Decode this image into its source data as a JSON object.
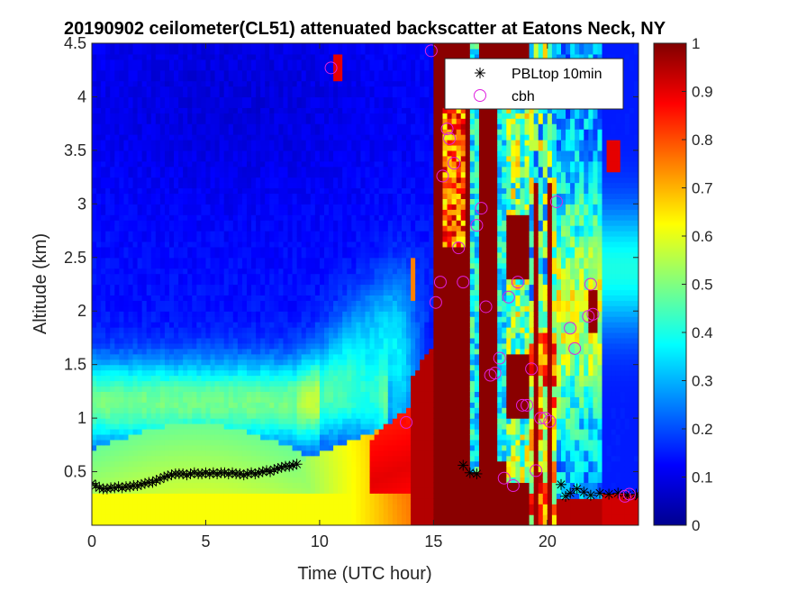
{
  "chart_data": {
    "type": "heatmap",
    "title": "20190902 ceilometer(CL51) attenuated backscatter at Eatons Neck, NY",
    "xlabel": "Time (UTC hour)",
    "ylabel": "Altitude (km)",
    "xlim": [
      0,
      24
    ],
    "ylim": [
      0,
      4.5
    ],
    "x_ticks": [
      0,
      5,
      10,
      15,
      20
    ],
    "x_tick_labels": [
      "0",
      "5",
      "10",
      "15",
      "20"
    ],
    "y_ticks": [
      0.5,
      1,
      1.5,
      2,
      2.5,
      3,
      3.5,
      4,
      4.5
    ],
    "y_tick_labels": [
      "0.5",
      "1",
      "1.5",
      "2",
      "2.5",
      "3",
      "3.5",
      "4",
      "4.5"
    ],
    "colorbar": {
      "colormap": "jet",
      "range": [
        0,
        1
      ],
      "ticks": [
        0,
        0.1,
        0.2,
        0.3,
        0.4,
        0.5,
        0.6,
        0.7,
        0.8,
        0.9,
        1
      ],
      "tick_labels": [
        "0",
        "0.1",
        "0.2",
        "0.3",
        "0.4",
        "0.5",
        "0.6",
        "0.7",
        "0.8",
        "0.9",
        "1"
      ]
    },
    "legend": {
      "placement": "top-right",
      "entries": [
        {
          "label": "PBLtop 10min",
          "marker": "asterisk",
          "color": "#000000"
        },
        {
          "label": "cbh",
          "marker": "circle",
          "color": "#e020e0"
        }
      ]
    },
    "series": [
      {
        "name": "PBLtop 10min",
        "marker": "asterisk",
        "color": "#000000",
        "x": [
          0.0,
          0.17,
          0.33,
          0.5,
          0.67,
          0.83,
          1.0,
          1.17,
          1.33,
          1.5,
          1.67,
          1.83,
          2.0,
          2.17,
          2.33,
          2.5,
          2.67,
          2.83,
          3.0,
          3.17,
          3.33,
          3.5,
          3.67,
          3.83,
          4.0,
          4.17,
          4.33,
          4.5,
          4.67,
          4.83,
          5.0,
          5.17,
          5.33,
          5.5,
          5.67,
          5.83,
          6.0,
          6.17,
          6.33,
          6.5,
          6.67,
          6.83,
          7.0,
          7.17,
          7.33,
          7.5,
          7.67,
          7.83,
          8.0,
          8.17,
          8.33,
          8.5,
          8.67,
          8.83,
          9.0,
          16.3,
          16.6,
          16.9,
          20.6,
          20.8,
          21.0,
          21.3,
          21.6,
          21.9,
          22.3,
          22.7,
          23.1,
          23.5,
          23.9,
          24.0
        ],
        "y": [
          0.39,
          0.37,
          0.35,
          0.34,
          0.34,
          0.35,
          0.35,
          0.36,
          0.35,
          0.36,
          0.36,
          0.37,
          0.37,
          0.38,
          0.39,
          0.4,
          0.4,
          0.42,
          0.43,
          0.45,
          0.46,
          0.47,
          0.48,
          0.48,
          0.48,
          0.47,
          0.48,
          0.49,
          0.48,
          0.48,
          0.49,
          0.48,
          0.49,
          0.48,
          0.49,
          0.49,
          0.48,
          0.49,
          0.48,
          0.48,
          0.47,
          0.48,
          0.49,
          0.48,
          0.49,
          0.5,
          0.51,
          0.5,
          0.52,
          0.53,
          0.54,
          0.55,
          0.55,
          0.56,
          0.57,
          0.56,
          0.49,
          0.48,
          0.38,
          0.27,
          0.3,
          0.34,
          0.31,
          0.28,
          0.3,
          0.29,
          0.3,
          0.28,
          0.29,
          0.27
        ]
      },
      {
        "name": "cbh",
        "marker": "circle",
        "color": "#e020e0",
        "x": [
          10.5,
          13.8,
          14.9,
          15.1,
          15.3,
          15.4,
          15.6,
          15.7,
          15.9,
          16.1,
          16.3,
          16.9,
          17.1,
          17.3,
          17.5,
          17.7,
          17.9,
          18.1,
          18.3,
          18.5,
          18.7,
          18.9,
          19.1,
          19.3,
          19.5,
          19.7,
          19.9,
          20.1,
          20.4,
          21.0,
          21.2,
          21.8,
          21.9,
          22.0,
          23.4,
          23.6
        ],
        "y": [
          4.27,
          0.96,
          4.43,
          2.08,
          2.27,
          3.26,
          3.7,
          3.61,
          3.38,
          2.59,
          2.27,
          2.8,
          2.96,
          2.04,
          1.4,
          1.42,
          1.56,
          0.44,
          2.13,
          0.37,
          2.27,
          1.12,
          1.12,
          1.46,
          0.51,
          1.0,
          1.0,
          0.97,
          3.02,
          1.84,
          1.65,
          1.95,
          2.25,
          1.97,
          0.27,
          0.29
        ]
      }
    ]
  }
}
